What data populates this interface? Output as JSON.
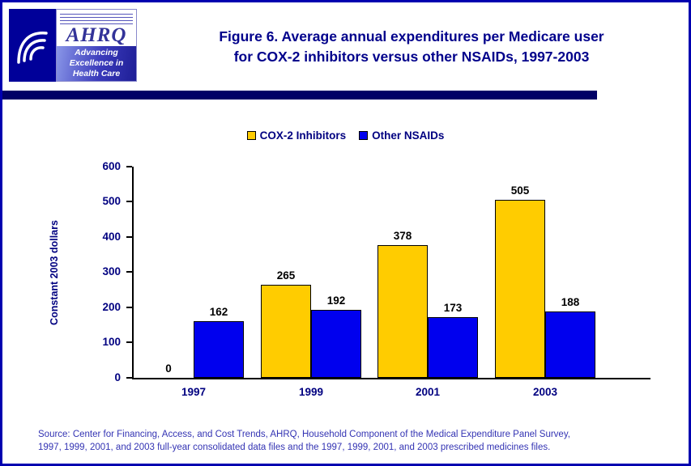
{
  "header": {
    "title_lines": [
      "Figure 6. Average annual expenditures per Medicare user",
      "for COX-2 inhibitors versus other NSAIDs, 1997-2003"
    ],
    "logo": {
      "ahrq_acronym": "AHRQ",
      "tagline": [
        "Advancing",
        "Excellence in",
        "Health Care"
      ]
    }
  },
  "chart_data": {
    "type": "bar",
    "title": "Figure 6. Average annual expenditures per Medicare user for COX-2 inhibitors versus other NSAIDs, 1997-2003",
    "categories": [
      "1997",
      "1999",
      "2001",
      "2003"
    ],
    "series": [
      {
        "name": "COX-2 Inhibitors",
        "color": "#FFCC00",
        "values": [
          0,
          265,
          378,
          505
        ]
      },
      {
        "name": "Other NSAIDs",
        "color": "#0000EE",
        "values": [
          162,
          192,
          173,
          188
        ]
      }
    ],
    "ylabel": "Constant 2003 dollars",
    "ylim": [
      0,
      600
    ],
    "yticks": [
      0,
      100,
      200,
      300,
      400,
      500,
      600
    ],
    "grid": false,
    "legend_position": "top",
    "bar_labels": true
  },
  "source": {
    "lines": [
      "Source: Center for Financing, Access, and Cost Trends, AHRQ, Household Component of the Medical Expenditure Panel Survey,",
      "1997, 1999, 2001, and 2003 full-year consolidated data files and the 1997, 1999, 2001, and 2003 prescribed medicines files."
    ]
  }
}
